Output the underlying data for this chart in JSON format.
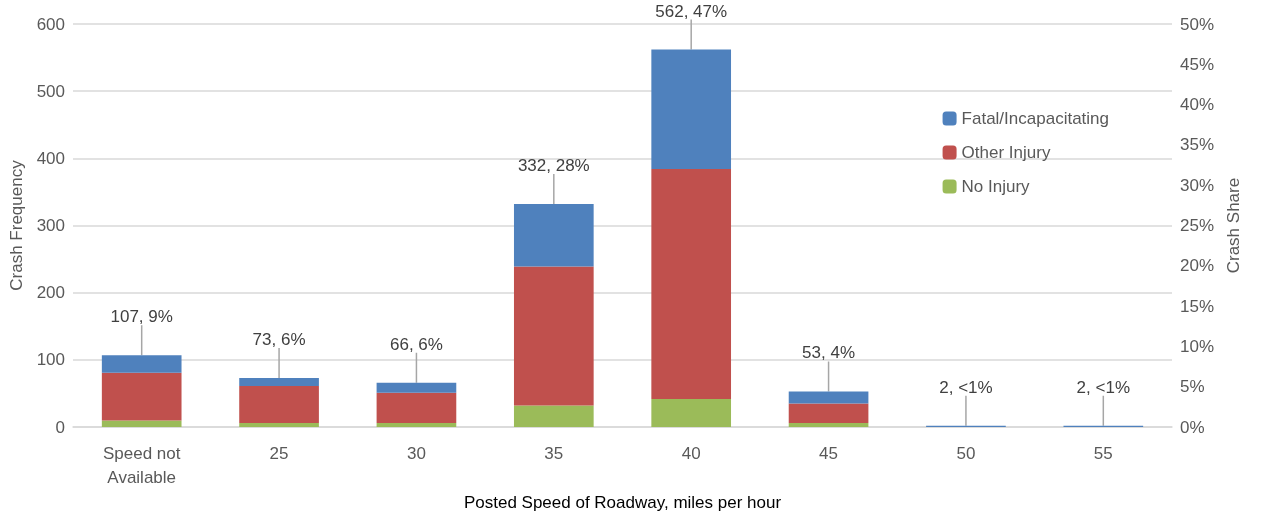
{
  "chart_data": {
    "type": "bar",
    "stacked": true,
    "xlabel": "Posted Speed of Roadway, miles per hour",
    "ylabel": "Crash Frequency",
    "y2label": "Crash Share",
    "categories": [
      "Speed not\nAvailable",
      "25",
      "30",
      "35",
      "40",
      "45",
      "50",
      "55"
    ],
    "series": [
      {
        "name": "No Injury",
        "color": "#9bbb59",
        "values": [
          10,
          6,
          6,
          32,
          42,
          6,
          0,
          0
        ]
      },
      {
        "name": "Other Injury",
        "color": "#c0504d",
        "values": [
          71,
          55,
          45,
          207,
          342,
          29,
          0,
          0
        ]
      },
      {
        "name": "Fatal/Incapacitating",
        "color": "#4f81bd",
        "values": [
          26,
          12,
          15,
          93,
          178,
          18,
          2,
          2
        ]
      }
    ],
    "totals": [
      "107, 9%",
      "73, 6%",
      "66, 6%",
      "332, 28%",
      "562, 47%",
      "53, 4%",
      "2, <1%",
      "2, <1%"
    ],
    "ylim": [
      0,
      600
    ],
    "yticks": [
      0,
      100,
      200,
      300,
      400,
      500,
      600
    ],
    "y2lim": [
      0,
      50
    ],
    "y2ticks": [
      {
        "value": 0,
        "label": "0%"
      },
      {
        "value": 5,
        "label": "5%"
      },
      {
        "value": 10,
        "label": "10%"
      },
      {
        "value": 15,
        "label": "15%"
      },
      {
        "value": 20,
        "label": "20%"
      },
      {
        "value": 25,
        "label": "25%"
      },
      {
        "value": 30,
        "label": "30%"
      },
      {
        "value": 35,
        "label": "35%"
      },
      {
        "value": 40,
        "label": "40%"
      },
      {
        "value": 45,
        "label": "45%"
      },
      {
        "value": 50,
        "label": "50%"
      }
    ],
    "grid": "y",
    "legend": "top right"
  }
}
